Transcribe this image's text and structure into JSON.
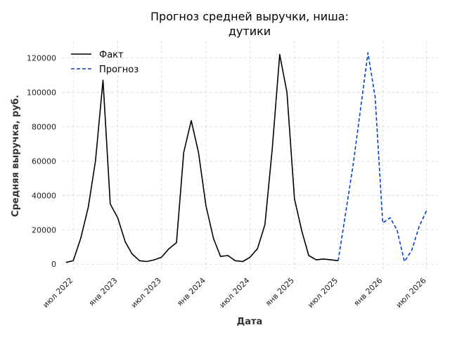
{
  "chart_data": {
    "type": "line",
    "title_lines": [
      "Прогноз средней выручки, ниша:",
      "дутики"
    ],
    "xlabel": "Дата",
    "ylabel": "Средняя выручка, руб.",
    "ylim": [
      -4000,
      130000
    ],
    "xlim": [
      "2022-05-15",
      "2026-08-15"
    ],
    "y_ticks": [
      0,
      20000,
      40000,
      60000,
      80000,
      100000,
      120000
    ],
    "x_ticks": [
      {
        "date": "2022-07-01",
        "label": "июл 2022"
      },
      {
        "date": "2023-01-01",
        "label": "янв 2023"
      },
      {
        "date": "2023-07-01",
        "label": "июл 2023"
      },
      {
        "date": "2024-01-01",
        "label": "янв 2024"
      },
      {
        "date": "2024-07-01",
        "label": "июл 2024"
      },
      {
        "date": "2025-01-01",
        "label": "янв 2025"
      },
      {
        "date": "2025-07-01",
        "label": "июл 2025"
      },
      {
        "date": "2026-01-01",
        "label": "янв 2026"
      },
      {
        "date": "2026-07-01",
        "label": "июл 2026"
      }
    ],
    "grid": true,
    "legend_position": "top-left",
    "series": [
      {
        "name": "Факт",
        "color": "#000000",
        "style": "solid",
        "x": [
          "2022-06-01",
          "2022-07-01",
          "2022-08-01",
          "2022-09-01",
          "2022-10-01",
          "2022-11-01",
          "2022-12-01",
          "2023-01-01",
          "2023-02-01",
          "2023-03-01",
          "2023-04-01",
          "2023-05-01",
          "2023-06-01",
          "2023-07-01",
          "2023-08-01",
          "2023-09-01",
          "2023-10-01",
          "2023-11-01",
          "2023-12-01",
          "2024-01-01",
          "2024-02-01",
          "2024-03-01",
          "2024-04-01",
          "2024-05-01",
          "2024-06-01",
          "2024-07-01",
          "2024-08-01",
          "2024-09-01",
          "2024-10-01",
          "2024-11-01",
          "2024-12-01",
          "2025-01-01",
          "2025-02-01",
          "2025-03-01",
          "2025-04-01",
          "2025-05-01",
          "2025-06-01",
          "2025-07-01"
        ],
        "values": [
          1000,
          2000,
          15000,
          33000,
          60000,
          107000,
          35000,
          27000,
          13000,
          6000,
          2000,
          1500,
          2500,
          4000,
          9000,
          12500,
          65000,
          83500,
          65000,
          34000,
          15000,
          4500,
          5000,
          2000,
          1500,
          4000,
          9000,
          23000,
          67000,
          122000,
          100000,
          38000,
          19000,
          5000,
          2500,
          3000,
          2500,
          2000
        ]
      },
      {
        "name": "Прогноз",
        "color": "#0044cc",
        "style": "dashed",
        "x": [
          "2025-07-01",
          "2025-08-01",
          "2025-09-01",
          "2025-10-01",
          "2025-11-01",
          "2025-12-01",
          "2026-01-01",
          "2026-02-01",
          "2026-03-01",
          "2026-04-01",
          "2026-05-01",
          "2026-06-01",
          "2026-07-01"
        ],
        "values": [
          2000,
          30000,
          58000,
          90000,
          123000,
          97000,
          24000,
          27000,
          20000,
          1500,
          8000,
          22000,
          31000
        ]
      }
    ]
  }
}
